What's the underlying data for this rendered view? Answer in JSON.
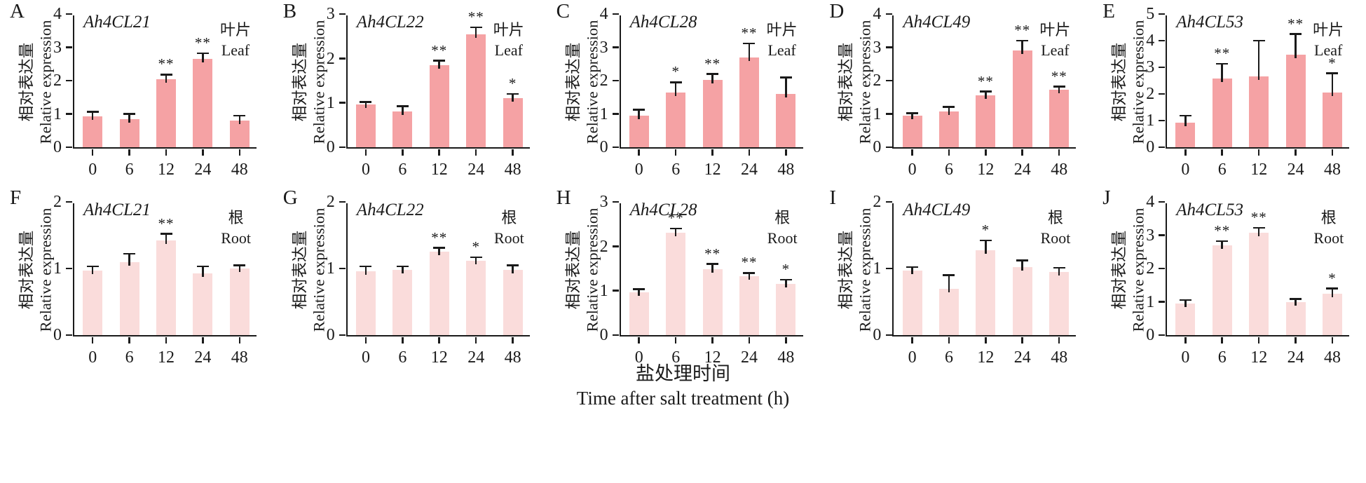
{
  "figure": {
    "ylabel_zh": "相对表达量",
    "ylabel_en": "Relative expression",
    "xlabel_zh": "盐处理时间",
    "xlabel_en": "Time after salt treatment (h)",
    "colors": {
      "leaf_bar": "#f5a2a4",
      "root_bar": "#fadcdb",
      "axis": "#1a1a1a",
      "text": "#1a1a1a"
    }
  },
  "chart_data": {
    "type": "bar",
    "categories": [
      "0",
      "6",
      "12",
      "24",
      "48"
    ],
    "xlabel": "盐处理时间 Time after salt treatment (h)",
    "ylabel": "相对表达量 Relative expression",
    "grid": false,
    "legend": "none",
    "panels": [
      {
        "id": "A",
        "gene": "Ah4CL21",
        "tissue_zh": "叶片",
        "tissue_en": "Leaf",
        "ymax": 4,
        "yticks": [
          0,
          1,
          2,
          3,
          4
        ],
        "values": [
          0.93,
          0.85,
          2.05,
          2.65,
          0.8
        ],
        "errors": [
          0.13,
          0.15,
          0.13,
          0.17,
          0.15
        ],
        "sig": [
          "",
          "",
          "**",
          "**",
          ""
        ]
      },
      {
        "id": "B",
        "gene": "Ah4CL22",
        "tissue_zh": "叶片",
        "tissue_en": "Leaf",
        "ymax": 3,
        "yticks": [
          0,
          1,
          2,
          3
        ],
        "values": [
          0.96,
          0.8,
          1.85,
          2.55,
          1.1
        ],
        "errors": [
          0.06,
          0.12,
          0.1,
          0.15,
          0.1
        ],
        "sig": [
          "",
          "",
          "**",
          "**",
          "*"
        ]
      },
      {
        "id": "C",
        "gene": "Ah4CL28",
        "tissue_zh": "叶片",
        "tissue_en": "Leaf",
        "ymax": 4,
        "yticks": [
          0,
          1,
          2,
          3,
          4
        ],
        "values": [
          0.95,
          1.65,
          2.02,
          2.7,
          1.6
        ],
        "errors": [
          0.18,
          0.3,
          0.18,
          0.42,
          0.5
        ],
        "sig": [
          "",
          "*",
          "**",
          "**",
          ""
        ]
      },
      {
        "id": "D",
        "gene": "Ah4CL49",
        "tissue_zh": "叶片",
        "tissue_en": "Leaf",
        "ymax": 4,
        "yticks": [
          0,
          1,
          2,
          3,
          4
        ],
        "values": [
          0.95,
          1.08,
          1.55,
          2.9,
          1.72
        ],
        "errors": [
          0.07,
          0.13,
          0.12,
          0.3,
          0.1
        ],
        "sig": [
          "",
          "",
          "**",
          "**",
          "**"
        ]
      },
      {
        "id": "E",
        "gene": "Ah4CL53",
        "tissue_zh": "叶片",
        "tissue_en": "Leaf",
        "ymax": 5,
        "yticks": [
          0,
          1,
          2,
          3,
          4,
          5
        ],
        "values": [
          0.93,
          2.58,
          2.65,
          3.48,
          2.05
        ],
        "errors": [
          0.25,
          0.55,
          1.35,
          0.77,
          0.72
        ],
        "sig": [
          "",
          "**",
          "",
          "**",
          "*"
        ]
      },
      {
        "id": "F",
        "gene": "Ah4CL21",
        "tissue_zh": "根",
        "tissue_en": "Root",
        "ymax": 2,
        "yticks": [
          0,
          1,
          2
        ],
        "values": [
          0.97,
          1.1,
          1.42,
          0.93,
          1.0
        ],
        "errors": [
          0.06,
          0.12,
          0.1,
          0.1,
          0.05
        ],
        "sig": [
          "",
          "",
          "**",
          "",
          ""
        ]
      },
      {
        "id": "G",
        "gene": "Ah4CL22",
        "tissue_zh": "根",
        "tissue_en": "Root",
        "ymax": 2,
        "yticks": [
          0,
          1,
          2
        ],
        "values": [
          0.96,
          0.98,
          1.25,
          1.12,
          0.98
        ],
        "errors": [
          0.07,
          0.05,
          0.06,
          0.05,
          0.07
        ],
        "sig": [
          "",
          "",
          "**",
          "*",
          ""
        ]
      },
      {
        "id": "H",
        "gene": "Ah4CL28",
        "tissue_zh": "根",
        "tissue_en": "Root",
        "ymax": 3,
        "yticks": [
          0,
          1,
          2,
          3
        ],
        "values": [
          0.97,
          2.3,
          1.48,
          1.32,
          1.15
        ],
        "errors": [
          0.06,
          0.1,
          0.12,
          0.08,
          0.1
        ],
        "sig": [
          "",
          "**",
          "**",
          "**",
          "*"
        ]
      },
      {
        "id": "I",
        "gene": "Ah4CL49",
        "tissue_zh": "根",
        "tissue_en": "Root",
        "ymax": 2,
        "yticks": [
          0,
          1,
          2
        ],
        "values": [
          0.97,
          0.7,
          1.27,
          1.02,
          0.95
        ],
        "errors": [
          0.05,
          0.2,
          0.15,
          0.1,
          0.06
        ],
        "sig": [
          "",
          "",
          "*",
          "",
          ""
        ]
      },
      {
        "id": "J",
        "gene": "Ah4CL53",
        "tissue_zh": "根",
        "tissue_en": "Root",
        "ymax": 4,
        "yticks": [
          0,
          1,
          2,
          3,
          4
        ],
        "values": [
          0.95,
          2.7,
          3.07,
          0.98,
          1.25
        ],
        "errors": [
          0.1,
          0.12,
          0.15,
          0.1,
          0.15
        ],
        "sig": [
          "",
          "**",
          "**",
          "",
          "*"
        ]
      }
    ]
  }
}
